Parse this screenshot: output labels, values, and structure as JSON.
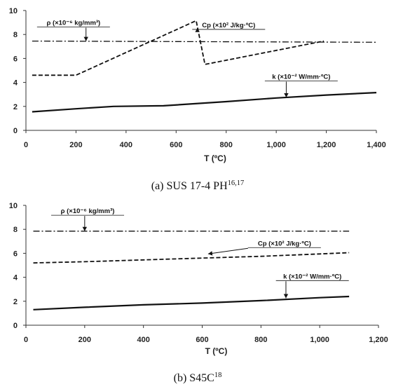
{
  "chart_data": [
    {
      "type": "line",
      "caption": "(a) SUS 17-4 PH",
      "caption_sup": "16,17",
      "xlabel": "T (ºC)",
      "ylabel": "",
      "xlim": [
        0,
        1400
      ],
      "ylim": [
        0,
        10
      ],
      "xticks": [
        0,
        200,
        400,
        600,
        800,
        1000,
        1200,
        1400
      ],
      "xticklabels": [
        "0",
        "200",
        "400",
        "600",
        "800",
        "1,000",
        "1,200",
        "1,400"
      ],
      "yticks": [
        0,
        2,
        4,
        6,
        8,
        10
      ],
      "yticklabels": [
        "0",
        "2",
        "4",
        "6",
        "8",
        "10"
      ],
      "grid": false,
      "series": [
        {
          "name": "ρ (×10⁻⁶ kg/mm³)",
          "style": "dashdot",
          "points": [
            [
              25,
              7.45
            ],
            [
              1400,
              7.35
            ]
          ]
        },
        {
          "name": "Cp (×10² J/kg·ºC)",
          "style": "dashed",
          "points": [
            [
              25,
              4.6
            ],
            [
              200,
              4.6
            ],
            [
              680,
              9.15
            ],
            [
              715,
              5.5
            ],
            [
              1190,
              7.45
            ]
          ]
        },
        {
          "name": "k (×10⁻² W/mm·ºC)",
          "style": "solid",
          "points": [
            [
              25,
              1.55
            ],
            [
              200,
              1.8
            ],
            [
              350,
              2.0
            ],
            [
              550,
              2.05
            ],
            [
              800,
              2.4
            ],
            [
              1000,
              2.7
            ],
            [
              1200,
              2.95
            ],
            [
              1400,
              3.15
            ]
          ]
        }
      ],
      "annotations": [
        {
          "text": "ρ (×10⁻⁶ kg/mm³)",
          "x": 190,
          "y": 8.8,
          "arrow_to": [
            240,
            7.45
          ]
        },
        {
          "text": "Cp (×10² J/kg·ºC)",
          "x": 810,
          "y": 8.6,
          "arrow_to": [
            685,
            8.55
          ]
        },
        {
          "text": "k (×10⁻² W/mm·ºC)",
          "x": 1100,
          "y": 4.3,
          "arrow_to": [
            1040,
            2.75
          ]
        }
      ]
    },
    {
      "type": "line",
      "caption": "(b) S45C",
      "caption_sup": "18",
      "xlabel": "T (ºC)",
      "ylabel": "",
      "xlim": [
        0,
        1200
      ],
      "ylim": [
        0,
        10
      ],
      "xticks": [
        0,
        200,
        400,
        600,
        800,
        1000,
        1200
      ],
      "xticklabels": [
        "0",
        "200",
        "400",
        "600",
        "800",
        "1,000",
        "1,200"
      ],
      "yticks": [
        0,
        2,
        4,
        6,
        8,
        10
      ],
      "yticklabels": [
        "0",
        "2",
        "4",
        "6",
        "8",
        "10"
      ],
      "grid": false,
      "series": [
        {
          "name": "ρ (×10⁻⁶ kg/mm³)",
          "style": "dashdot",
          "points": [
            [
              25,
              7.85
            ],
            [
              1100,
              7.85
            ]
          ]
        },
        {
          "name": "Cp (×10² J/kg·ºC)",
          "style": "dashed",
          "points": [
            [
              25,
              5.2
            ],
            [
              200,
              5.3
            ],
            [
              400,
              5.45
            ],
            [
              600,
              5.6
            ],
            [
              800,
              5.75
            ],
            [
              1000,
              5.95
            ],
            [
              1100,
              6.05
            ]
          ]
        },
        {
          "name": "k (×10⁻² W/mm·ºC)",
          "style": "solid",
          "points": [
            [
              25,
              1.3
            ],
            [
              200,
              1.5
            ],
            [
              400,
              1.7
            ],
            [
              600,
              1.85
            ],
            [
              800,
              2.05
            ],
            [
              1000,
              2.3
            ],
            [
              1100,
              2.4
            ]
          ]
        }
      ],
      "annotations": [
        {
          "text": "ρ (×10⁻⁶ kg/mm³)",
          "x": 210,
          "y": 9.35,
          "arrow_to": [
            200,
            7.85
          ]
        },
        {
          "text": "Cp (×10² J/kg·ºC)",
          "x": 880,
          "y": 6.65,
          "arrow_to": [
            620,
            5.95
          ]
        },
        {
          "text": "k (×10⁻² W/mm·ºC)",
          "x": 975,
          "y": 3.9,
          "arrow_to": [
            885,
            2.25
          ]
        }
      ]
    }
  ]
}
